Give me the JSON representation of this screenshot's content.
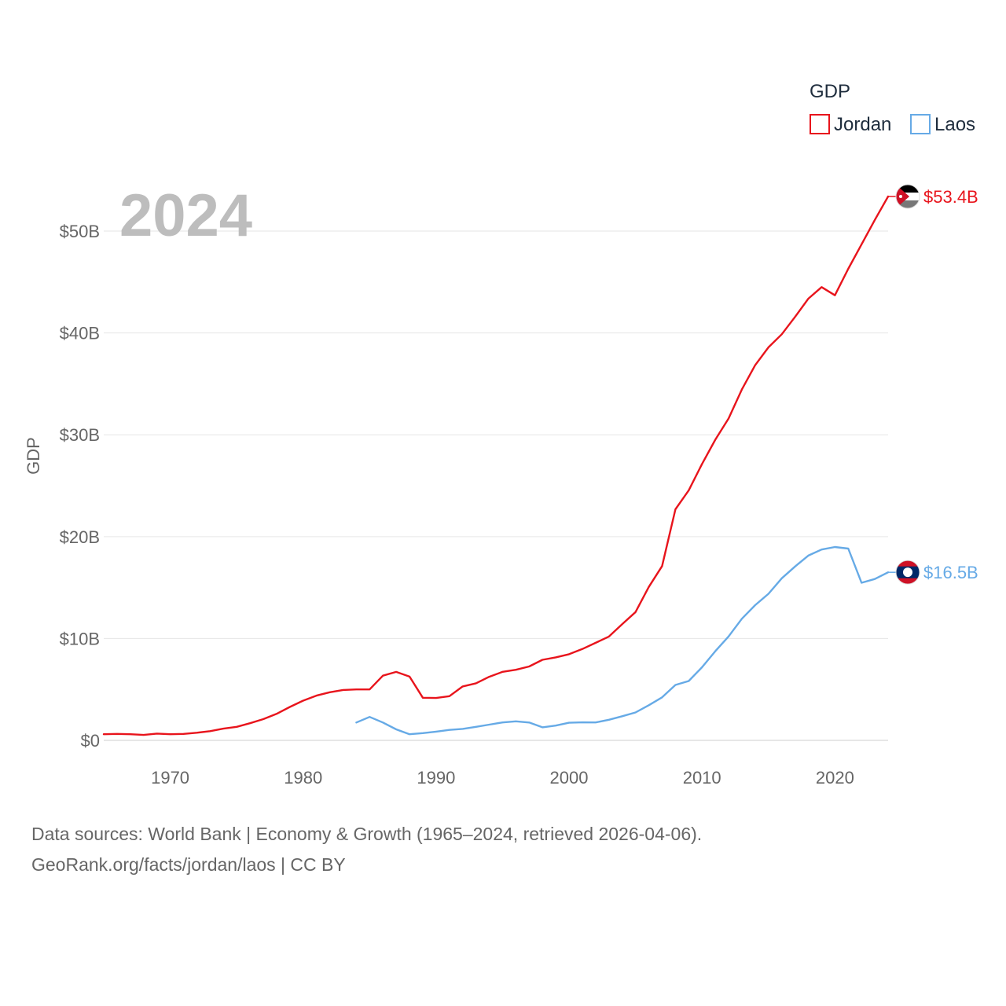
{
  "chart_data": {
    "type": "line",
    "title": "GDP",
    "year_label": "2024",
    "ylabel": "GDP",
    "xlabel": "",
    "xlim": [
      1965,
      2024
    ],
    "ylim": [
      0,
      53.4
    ],
    "y_ticks": [
      {
        "value": 0,
        "label": "$0"
      },
      {
        "value": 10,
        "label": "$10B"
      },
      {
        "value": 20,
        "label": "$20B"
      },
      {
        "value": 30,
        "label": "$30B"
      },
      {
        "value": 40,
        "label": "$40B"
      },
      {
        "value": 50,
        "label": "$50B"
      }
    ],
    "x_ticks": [
      {
        "value": 1970,
        "label": "1970"
      },
      {
        "value": 1980,
        "label": "1980"
      },
      {
        "value": 1990,
        "label": "1990"
      },
      {
        "value": 2000,
        "label": "2000"
      },
      {
        "value": 2010,
        "label": "2010"
      },
      {
        "value": 2020,
        "label": "2020"
      }
    ],
    "grid": true,
    "legend": {
      "title": "GDP",
      "position": "top-right"
    },
    "series": [
      {
        "name": "Jordan",
        "color": "#e8141c",
        "end_label": "$53.4B",
        "flag_icon": "jordan-flag-icon",
        "points": [
          [
            1965,
            0.6
          ],
          [
            1966,
            0.63
          ],
          [
            1967,
            0.6
          ],
          [
            1968,
            0.53
          ],
          [
            1969,
            0.66
          ],
          [
            1970,
            0.6
          ],
          [
            1971,
            0.63
          ],
          [
            1972,
            0.75
          ],
          [
            1973,
            0.9
          ],
          [
            1974,
            1.15
          ],
          [
            1975,
            1.33
          ],
          [
            1976,
            1.68
          ],
          [
            1977,
            2.08
          ],
          [
            1978,
            2.6
          ],
          [
            1979,
            3.28
          ],
          [
            1980,
            3.9
          ],
          [
            1981,
            4.39
          ],
          [
            1982,
            4.72
          ],
          [
            1983,
            4.95
          ],
          [
            1984,
            5.0
          ],
          [
            1985,
            5.0
          ],
          [
            1986,
            6.35
          ],
          [
            1987,
            6.72
          ],
          [
            1988,
            6.26
          ],
          [
            1989,
            4.18
          ],
          [
            1990,
            4.16
          ],
          [
            1991,
            4.34
          ],
          [
            1992,
            5.29
          ],
          [
            1993,
            5.6
          ],
          [
            1994,
            6.24
          ],
          [
            1995,
            6.73
          ],
          [
            1996,
            6.93
          ],
          [
            1997,
            7.25
          ],
          [
            1998,
            7.91
          ],
          [
            1999,
            8.15
          ],
          [
            2000,
            8.46
          ],
          [
            2001,
            8.97
          ],
          [
            2002,
            9.58
          ],
          [
            2003,
            10.19
          ],
          [
            2004,
            11.41
          ],
          [
            2005,
            12.59
          ],
          [
            2006,
            15.06
          ],
          [
            2007,
            17.11
          ],
          [
            2008,
            22.69
          ],
          [
            2009,
            24.55
          ],
          [
            2010,
            27.13
          ],
          [
            2011,
            29.52
          ],
          [
            2012,
            31.6
          ],
          [
            2013,
            34.45
          ],
          [
            2014,
            36.83
          ],
          [
            2015,
            38.59
          ],
          [
            2016,
            39.87
          ],
          [
            2017,
            41.58
          ],
          [
            2018,
            43.37
          ],
          [
            2019,
            44.5
          ],
          [
            2020,
            43.7
          ],
          [
            2021,
            46.3
          ],
          [
            2022,
            48.7
          ],
          [
            2023,
            51.1
          ],
          [
            2024,
            53.4
          ]
        ]
      },
      {
        "name": "Laos",
        "color": "#66aae6",
        "end_label": "$16.5B",
        "flag_icon": "laos-flag-icon",
        "points": [
          [
            1984,
            1.75
          ],
          [
            1985,
            2.3
          ],
          [
            1986,
            1.75
          ],
          [
            1987,
            1.08
          ],
          [
            1988,
            0.6
          ],
          [
            1989,
            0.71
          ],
          [
            1990,
            0.86
          ],
          [
            1991,
            1.03
          ],
          [
            1992,
            1.13
          ],
          [
            1993,
            1.33
          ],
          [
            1994,
            1.54
          ],
          [
            1995,
            1.76
          ],
          [
            1996,
            1.87
          ],
          [
            1997,
            1.75
          ],
          [
            1998,
            1.28
          ],
          [
            1999,
            1.45
          ],
          [
            2000,
            1.73
          ],
          [
            2001,
            1.77
          ],
          [
            2002,
            1.76
          ],
          [
            2003,
            2.02
          ],
          [
            2004,
            2.37
          ],
          [
            2005,
            2.74
          ],
          [
            2006,
            3.45
          ],
          [
            2007,
            4.22
          ],
          [
            2008,
            5.44
          ],
          [
            2009,
            5.83
          ],
          [
            2010,
            7.18
          ],
          [
            2011,
            8.75
          ],
          [
            2012,
            10.2
          ],
          [
            2013,
            11.94
          ],
          [
            2014,
            13.27
          ],
          [
            2015,
            14.39
          ],
          [
            2016,
            15.91
          ],
          [
            2017,
            17.07
          ],
          [
            2018,
            18.14
          ],
          [
            2019,
            18.74
          ],
          [
            2020,
            18.98
          ],
          [
            2021,
            18.83
          ],
          [
            2022,
            15.47
          ],
          [
            2023,
            15.84
          ],
          [
            2024,
            16.5
          ]
        ]
      }
    ]
  },
  "footer": {
    "line1": "Data sources: World Bank | Economy & Growth (1965–2024, retrieved 2026-04-06).",
    "line2": "GeoRank.org/facts/jordan/laos | CC BY"
  }
}
